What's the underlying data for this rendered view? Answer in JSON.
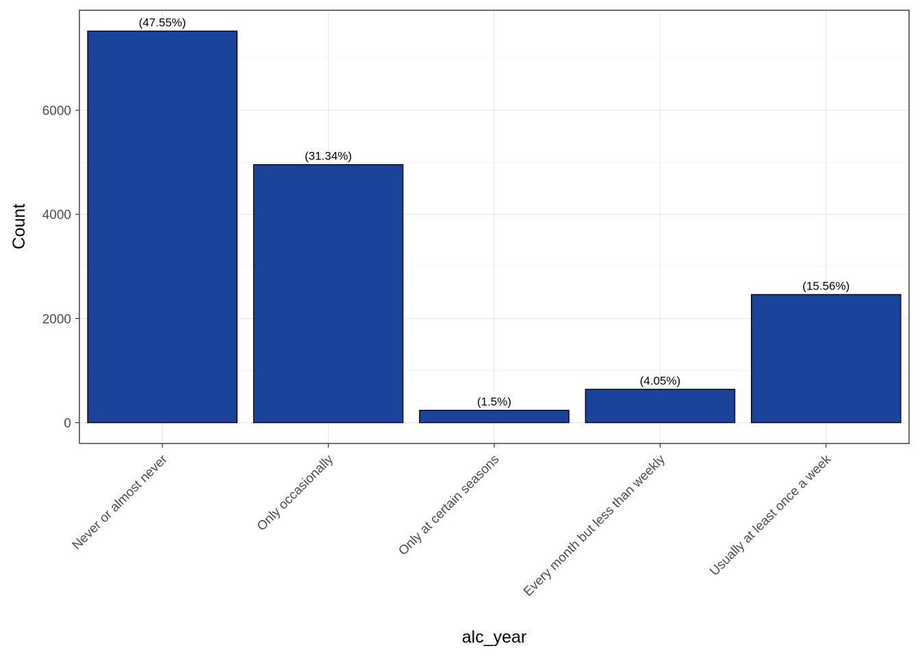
{
  "chart_data": {
    "type": "bar",
    "title": "",
    "xlabel": "alc_year",
    "ylabel": "Count",
    "categories": [
      "Never or almost never",
      "Only occasionally",
      "Only at certain seasons",
      "Every month but less than weekly",
      "Usually at least once a week"
    ],
    "values": [
      7520,
      4955,
      237,
      640,
      2460
    ],
    "data_labels": [
      "(47.55%)",
      "(31.34%)",
      "(1.5%)",
      "(4.05%)",
      "(15.56%)"
    ],
    "ylim": [
      -400,
      7920
    ],
    "yticks": [
      0,
      2000,
      4000,
      6000
    ],
    "ytick_labels": [
      "0",
      "2000",
      "4000",
      "6000"
    ],
    "grid": true,
    "legend": "none",
    "colors": {
      "bar_fill": "#1a4499",
      "bar_outline": "#000000"
    }
  }
}
